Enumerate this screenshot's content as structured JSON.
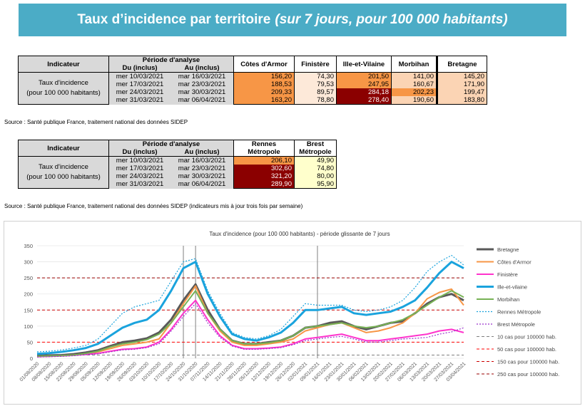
{
  "banner": {
    "title": "Taux d’incidence par territoire",
    "subtitle": "(sur 7 jours, pour 100 000 habitants)"
  },
  "table1": {
    "indicateur": "Indicateur",
    "periode": "Période d'analyse",
    "du": "Du (inclus)",
    "au": "Au (inclus)",
    "cols": [
      "Côtes d'Armor",
      "Finistère",
      "Ille-et-Vilaine",
      "Morbihan",
      "Bretagne"
    ],
    "label_l1": "Taux d'incidence",
    "label_l2": "(pour 100 000 habitants)",
    "rows": [
      {
        "du": "mer 10/03/2021",
        "au": "mar 16/03/2021",
        "v": [
          "156,20",
          "74,30",
          "201,50",
          "141,00",
          "145,20"
        ]
      },
      {
        "du": "mer 17/03/2021",
        "au": "mar 23/03/2021",
        "v": [
          "188,53",
          "79,53",
          "247,95",
          "160,67",
          "171,90"
        ]
      },
      {
        "du": "mer 24/03/2021",
        "au": "mar 30/03/2021",
        "v": [
          "209,33",
          "89,57",
          "284,18",
          "202,23",
          "199,47"
        ]
      },
      {
        "du": "mer 31/03/2021",
        "au": "mar 06/04/2021",
        "v": [
          "163,20",
          "78,80",
          "278,40",
          "190,60",
          "183,80"
        ]
      }
    ],
    "colors": [
      [
        "#f79646",
        "#fde9d9",
        "#f79646",
        "#fbd4b4",
        "#fbd4b4"
      ],
      [
        "#f79646",
        "#fde9d9",
        "#f79646",
        "#fbd4b4",
        "#fbd4b4"
      ],
      [
        "#f79646",
        "#fde9d9",
        "#8b0000",
        "#f79646",
        "#fbd4b4"
      ],
      [
        "#f79646",
        "#fde9d9",
        "#8b0000",
        "#fbd4b4",
        "#fbd4b4"
      ]
    ],
    "source": "Source  : Santé publique France, traitement national des données SIDEP"
  },
  "table2": {
    "indicateur": "Indicateur",
    "periode": "Période d'analyse",
    "du": "Du (inclus)",
    "au": "Au (inclus)",
    "cols_l1": [
      "Rennes",
      "Brest"
    ],
    "cols_l2": [
      "Métropole",
      "Métropole"
    ],
    "label_l1": "Taux d'incidence",
    "label_l2": "(pour 100 000 habitants)",
    "rows": [
      {
        "du": "mer 10/03/2021",
        "au": "mar 16/03/2021",
        "v": [
          "206,10",
          "49,90"
        ]
      },
      {
        "du": "mer 17/03/2021",
        "au": "mar 23/03/2021",
        "v": [
          "302,60",
          "74,80"
        ]
      },
      {
        "du": "mer 24/03/2021",
        "au": "mar 30/03/2021",
        "v": [
          "321,20",
          "80,00"
        ]
      },
      {
        "du": "mer 31/03/2021",
        "au": "mar 06/04/2021",
        "v": [
          "289,90",
          "95,90"
        ]
      }
    ],
    "colors": [
      [
        "#f79646",
        "#ffffcc"
      ],
      [
        "#8b0000",
        "#ffffcc"
      ],
      [
        "#8b0000",
        "#ffffcc"
      ],
      [
        "#8b0000",
        "#ffffcc"
      ]
    ],
    "source": "Source  : Santé publique France, traitement national des données SIDEP (indicateurs mis à jour trois fois par semaine)"
  },
  "chart_data": {
    "type": "line",
    "title": "Taux d'incidence (pour 100 000 habitants) - période glissante de 7 jours",
    "ylim": [
      0,
      350
    ],
    "yticks": [
      0,
      50,
      100,
      150,
      200,
      250,
      300,
      350
    ],
    "xticks": [
      "01/08/2020",
      "08/08/2020",
      "15/08/2020",
      "22/08/2020",
      "29/08/2020",
      "05/09/2020",
      "12/09/2020",
      "19/09/2020",
      "26/09/2020",
      "03/10/2020",
      "10/10/2020",
      "17/10/2020",
      "24/10/2020",
      "31/10/2020",
      "07/11/2020",
      "14/11/2020",
      "21/11/2020",
      "28/11/2020",
      "05/12/2020",
      "12/12/2020",
      "19/12/2020",
      "26/12/2020",
      "02/01/2021",
      "09/01/2021",
      "16/01/2021",
      "23/01/2021",
      "30/01/2021",
      "06/02/2021",
      "13/02/2021",
      "20/02/2021",
      "27/02/2021",
      "06/03/2021",
      "13/03/2021",
      "20/03/2021",
      "27/03/2021",
      "03/04/2021"
    ],
    "vlines": [
      "24/10/2020",
      "31/10/2020",
      "09/01/2021"
    ],
    "series": [
      {
        "name": "Bretagne",
        "color": "#595959",
        "width": 3,
        "dash": "",
        "values": [
          8,
          9,
          10,
          13,
          18,
          25,
          38,
          50,
          55,
          62,
          80,
          120,
          180,
          230,
          150,
          90,
          55,
          45,
          45,
          50,
          55,
          70,
          95,
          100,
          110,
          115,
          100,
          90,
          100,
          110,
          115,
          140,
          170,
          190,
          200,
          180
        ]
      },
      {
        "name": "Côtes d'Armor",
        "color": "#f79646",
        "width": 2,
        "dash": "",
        "values": [
          5,
          6,
          8,
          10,
          14,
          20,
          30,
          40,
          45,
          50,
          60,
          110,
          170,
          225,
          140,
          85,
          50,
          40,
          40,
          45,
          50,
          60,
          85,
          95,
          105,
          110,
          95,
          80,
          85,
          95,
          110,
          140,
          185,
          205,
          215,
          165
        ]
      },
      {
        "name": "Finistère",
        "color": "#ff33cc",
        "width": 2,
        "dash": "",
        "values": [
          5,
          6,
          7,
          9,
          12,
          15,
          22,
          28,
          30,
          35,
          50,
          90,
          140,
          180,
          120,
          70,
          40,
          30,
          30,
          32,
          35,
          45,
          60,
          65,
          70,
          75,
          65,
          55,
          55,
          60,
          65,
          70,
          75,
          85,
          90,
          80
        ]
      },
      {
        "name": "Ille-et-vilaine",
        "color": "#1aa3dd",
        "width": 3,
        "dash": "",
        "values": [
          14,
          16,
          20,
          25,
          32,
          45,
          70,
          95,
          110,
          120,
          150,
          210,
          280,
          300,
          200,
          130,
          75,
          60,
          55,
          65,
          80,
          110,
          150,
          150,
          155,
          160,
          140,
          135,
          140,
          145,
          160,
          180,
          220,
          265,
          300,
          280
        ]
      },
      {
        "name": "Morbihan",
        "color": "#77b255",
        "width": 2,
        "dash": "",
        "values": [
          6,
          7,
          8,
          10,
          15,
          22,
          35,
          45,
          50,
          58,
          75,
          110,
          160,
          210,
          140,
          90,
          55,
          45,
          45,
          48,
          55,
          70,
          95,
          100,
          105,
          110,
          100,
          95,
          100,
          110,
          120,
          140,
          165,
          190,
          210,
          190
        ]
      },
      {
        "name": "Rennes Métropole",
        "color": "#1aa3dd",
        "width": 1.2,
        "dash": "2,2",
        "values": [
          20,
          22,
          26,
          32,
          40,
          60,
          100,
          140,
          160,
          170,
          180,
          240,
          300,
          310,
          210,
          140,
          80,
          65,
          60,
          70,
          90,
          130,
          170,
          165,
          165,
          165,
          150,
          145,
          150,
          160,
          180,
          220,
          270,
          300,
          320,
          290
        ]
      },
      {
        "name": "Brest Métropole",
        "color": "#9933cc",
        "width": 1.2,
        "dash": "2,2",
        "values": [
          4,
          5,
          6,
          8,
          11,
          14,
          20,
          26,
          28,
          33,
          45,
          85,
          130,
          170,
          110,
          65,
          38,
          28,
          28,
          30,
          33,
          42,
          55,
          60,
          65,
          68,
          60,
          50,
          50,
          55,
          60,
          62,
          65,
          75,
          82,
          95
        ]
      },
      {
        "name": "10 cas pour 100000 hab.",
        "color": "#7f7f7f",
        "width": 1,
        "dash": "4,3",
        "const": 10
      },
      {
        "name": "50 cas pour 100000 hab.",
        "color": "#ff0000",
        "width": 1,
        "dash": "4,3",
        "const": 50
      },
      {
        "name": "150 cas pour 100000 hab.",
        "color": "#cc0000",
        "width": 1,
        "dash": "4,3",
        "const": 150
      },
      {
        "name": "250 cas pour 100000 hab.",
        "color": "#990000",
        "width": 1,
        "dash": "4,3",
        "const": 250
      }
    ]
  }
}
